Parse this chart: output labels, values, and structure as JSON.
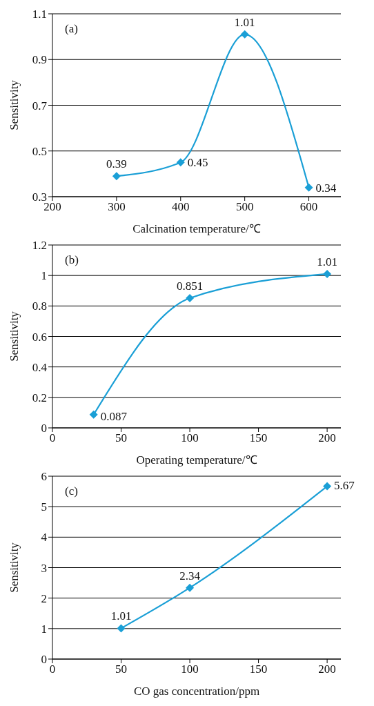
{
  "chart_data": [
    {
      "type": "line",
      "annotations": [
        "(a)"
      ],
      "xlabel": "Calcination temperature/℃",
      "ylabel": "Sensitivity",
      "x": [
        300,
        400,
        500,
        600
      ],
      "series": [
        {
          "color": "#1a9fd6",
          "values": [
            0.39,
            0.45,
            1.01,
            0.34
          ]
        }
      ],
      "xlim": [
        200,
        650
      ],
      "xticks": [
        200,
        300,
        400,
        500,
        600
      ],
      "ylim": [
        0.3,
        1.1
      ],
      "yticks": [
        0.3,
        0.5,
        0.7,
        0.9,
        1.1
      ],
      "grid": "y",
      "marker": "diamond",
      "data_labels": true
    },
    {
      "type": "line",
      "annotations": [
        "(b)"
      ],
      "xlabel": "Operating temperature/℃",
      "ylabel": "Sensitivity",
      "x": [
        30,
        100,
        200
      ],
      "series": [
        {
          "color": "#1a9fd6",
          "values": [
            0.087,
            0.851,
            1.01
          ]
        }
      ],
      "xlim": [
        0,
        210
      ],
      "xticks": [
        0,
        50,
        100,
        150,
        200
      ],
      "ylim": [
        0,
        1.2
      ],
      "yticks": [
        0,
        0.2,
        0.4,
        0.6,
        0.8,
        1,
        1.2
      ],
      "grid": "y",
      "marker": "diamond",
      "data_labels": true
    },
    {
      "type": "line",
      "annotations": [
        "(c)"
      ],
      "xlabel": "CO gas concentration/ppm",
      "ylabel": "Sensitivity",
      "x": [
        50,
        100,
        200
      ],
      "series": [
        {
          "color": "#1a9fd6",
          "values": [
            1.01,
            2.34,
            5.67
          ]
        }
      ],
      "xlim": [
        0,
        210
      ],
      "xticks": [
        0,
        50,
        100,
        150,
        200
      ],
      "ylim": [
        0,
        6
      ],
      "yticks": [
        0,
        1,
        2,
        3,
        4,
        5,
        6
      ],
      "grid": "y",
      "marker": "diamond",
      "data_labels": true
    }
  ]
}
